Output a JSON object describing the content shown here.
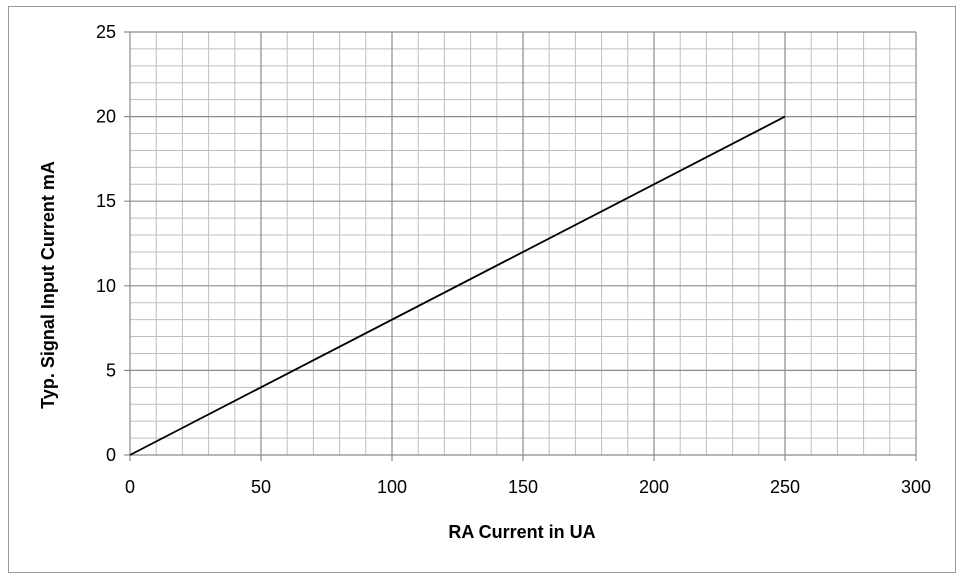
{
  "chart_data": {
    "type": "line",
    "title": "",
    "xlabel": "RA Current in UA",
    "ylabel": "Typ.  Signal Input Current   mA",
    "xlim": [
      0,
      300
    ],
    "ylim": [
      0,
      25
    ],
    "x_ticks": [
      0,
      50,
      100,
      150,
      200,
      250,
      300
    ],
    "y_ticks": [
      0,
      5,
      10,
      15,
      20,
      25
    ],
    "x_ticks_labels": [
      "0",
      "50",
      "100",
      "150",
      "200",
      "250",
      "300"
    ],
    "y_ticks_labels": [
      "0",
      "5",
      "10",
      "15",
      "20",
      "25"
    ],
    "grid": true,
    "grid_minor": {
      "x_step": 10,
      "y_step": 1
    },
    "legend": "none",
    "series": [
      {
        "x": [
          0,
          250
        ],
        "y": [
          0,
          20
        ],
        "color": "#000000"
      }
    ],
    "colors": {
      "line": "#000000",
      "grid_major": "#8c8c8c",
      "grid_minor": "#bfbfbf",
      "frame": "#9a9a9a"
    }
  }
}
